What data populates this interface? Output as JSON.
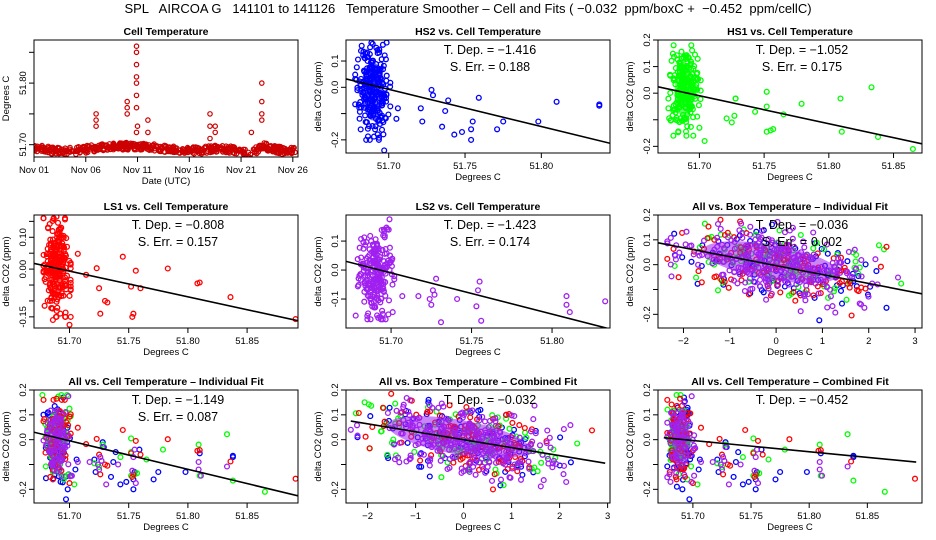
{
  "title": "SPL   AIRCOA G   141101 to 141126   Temperature Smoother – Cell and Fits ( −0.032  ppm/boxC +  −0.452  ppm/cellC)",
  "colors": {
    "HS2": "#0000ff",
    "HS1": "#00ff00",
    "LS1": "#ff0000",
    "LS2": "#a020f0",
    "cell_temp_fill": "#cc0000",
    "fit_line": "#000000"
  },
  "chart_data": [
    {
      "id": "cell-temperature",
      "type": "scatter",
      "title": "Cell Temperature",
      "xlabel": "Date (UTC)",
      "ylabel": "Degrees C",
      "xlim": [
        0,
        25.5
      ],
      "ylim": [
        51.68,
        51.87
      ],
      "xticks": [
        0,
        5,
        10,
        15,
        20,
        25
      ],
      "xticklabels": [
        "Nov 01",
        "Nov 06",
        "Nov 11",
        "Nov 16",
        "Nov 21",
        "Nov 26"
      ],
      "yticks": [
        51.7,
        51.75,
        51.8,
        51.85
      ],
      "yticklabels": [
        "51.70",
        "",
        "51.80",
        ""
      ],
      "series": [
        {
          "name": "cell",
          "color_key": "cell_temp_fill",
          "baseline": [
            [
              0,
              51.695
            ],
            [
              2,
              51.69
            ],
            [
              4,
              51.69
            ],
            [
              6,
              51.695
            ],
            [
              8,
              51.697
            ],
            [
              10,
              51.698
            ],
            [
              12,
              51.695
            ],
            [
              14,
              51.692
            ],
            [
              16,
              51.69
            ],
            [
              18,
              51.695
            ],
            [
              20,
              51.688
            ],
            [
              21,
              51.685
            ],
            [
              22,
              51.698
            ],
            [
              24,
              51.69
            ],
            [
              25,
              51.69
            ]
          ],
          "spikes": [
            [
              6,
              51.73
            ],
            [
              6,
              51.74
            ],
            [
              6,
              51.75
            ],
            [
              9,
              51.75
            ],
            [
              9,
              51.76
            ],
            [
              9,
              51.77
            ],
            [
              9.9,
              51.72
            ],
            [
              9.9,
              51.76
            ],
            [
              9.9,
              51.78
            ],
            [
              9.9,
              51.8
            ],
            [
              9.9,
              51.81
            ],
            [
              9.9,
              51.83
            ],
            [
              9.9,
              51.85
            ],
            [
              9.9,
              51.86
            ],
            [
              10,
              51.73
            ],
            [
              11,
              51.72
            ],
            [
              11,
              51.74
            ],
            [
              17,
              51.71
            ],
            [
              17,
              51.73
            ],
            [
              17,
              51.75
            ],
            [
              17.5,
              51.72
            ],
            [
              17.5,
              51.73
            ],
            [
              21,
              51.72
            ],
            [
              22,
              51.74
            ],
            [
              22,
              51.75
            ],
            [
              22,
              51.77
            ],
            [
              22,
              51.8
            ]
          ]
        }
      ]
    },
    {
      "id": "hs2-vs-cell",
      "type": "scatter",
      "title": "HS2 vs. Cell Temperature",
      "xlabel": "Degrees C",
      "ylabel": "delta CO2 (ppm)",
      "xlim": [
        51.672,
        51.845
      ],
      "ylim": [
        -0.25,
        0.18
      ],
      "xticks": [
        51.7,
        51.75,
        51.8
      ],
      "xticklabels": [
        "51.70",
        "51.75",
        "51.80"
      ],
      "yticks": [
        -0.2,
        -0.1,
        0.0,
        0.1
      ],
      "yticklabels": [
        "-0.2",
        "",
        "0.0",
        "0.1"
      ],
      "annotations": [
        "T. Dep. =  −1.416",
        "S. Err. =  0.188"
      ],
      "fit": {
        "slope": -1.416,
        "intercept_at": [
          51.672,
          0.032
        ]
      },
      "series": [
        {
          "name": "HS2",
          "color_key": "HS2",
          "cluster": {
            "x": [
              51.678,
              51.701
            ],
            "y": [
              -0.2,
              0.17
            ]
          },
          "points": [
            [
              51.706,
              -0.08
            ],
            [
              51.705,
              -0.12
            ],
            [
              51.721,
              -0.08
            ],
            [
              51.722,
              -0.13
            ],
            [
              51.728,
              -0.01
            ],
            [
              51.729,
              -0.03
            ],
            [
              51.735,
              -0.15
            ],
            [
              51.737,
              -0.09
            ],
            [
              51.739,
              -0.05
            ],
            [
              51.743,
              -0.18
            ],
            [
              51.748,
              -0.17
            ],
            [
              51.754,
              -0.16
            ],
            [
              51.754,
              -0.2
            ],
            [
              51.755,
              -0.13
            ],
            [
              51.759,
              -0.04
            ],
            [
              51.771,
              -0.16
            ],
            [
              51.775,
              -0.13
            ],
            [
              51.798,
              -0.13
            ],
            [
              51.81,
              -0.055
            ],
            [
              51.838,
              -0.065
            ],
            [
              51.838,
              -0.07
            ],
            [
              51.697,
              -0.24
            ]
          ]
        }
      ]
    },
    {
      "id": "hs1-vs-cell",
      "type": "scatter",
      "title": "HS1 vs. Cell Temperature",
      "xlabel": "Degrees C",
      "ylabel": "delta CO2 (ppm)",
      "xlim": [
        51.668,
        51.872
      ],
      "ylim": [
        -0.225,
        0.2
      ],
      "xticks": [
        51.7,
        51.75,
        51.8,
        51.85
      ],
      "xticklabels": [
        "51.70",
        "51.75",
        "51.80",
        "51.85"
      ],
      "yticks": [
        -0.2,
        -0.1,
        0.0,
        0.1,
        0.2
      ],
      "yticklabels": [
        "-0.2",
        "",
        "0.0",
        "0.1",
        "0.2"
      ],
      "annotations": [
        "T. Dep. =  −1.052",
        "S. Err. =  0.175"
      ],
      "fit": {
        "slope": -1.052,
        "intercept_at": [
          51.668,
          0.024
        ]
      },
      "series": [
        {
          "name": "HS1",
          "color_key": "HS1",
          "cluster": {
            "x": [
              51.676,
              51.701
            ],
            "y": [
              -0.16,
              0.18
            ]
          },
          "points": [
            [
              51.704,
              -0.18
            ],
            [
              51.721,
              -0.095
            ],
            [
              51.725,
              -0.11
            ],
            [
              51.727,
              -0.085
            ],
            [
              51.728,
              -0.02
            ],
            [
              51.728,
              -0.02
            ],
            [
              51.743,
              -0.07
            ],
            [
              51.752,
              0.005
            ],
            [
              51.752,
              -0.05
            ],
            [
              51.752,
              -0.145
            ],
            [
              51.755,
              -0.14
            ],
            [
              51.757,
              -0.135
            ],
            [
              51.765,
              -0.08
            ],
            [
              51.779,
              -0.04
            ],
            [
              51.809,
              -0.02
            ],
            [
              51.81,
              -0.145
            ],
            [
              51.833,
              0.022
            ],
            [
              51.838,
              -0.165
            ],
            [
              51.865,
              -0.21
            ]
          ]
        }
      ]
    },
    {
      "id": "ls1-vs-cell",
      "type": "scatter",
      "title": "LS1 vs. Cell Temperature",
      "xlabel": "Degrees C",
      "ylabel": "delta CO2 (ppm)",
      "xlim": [
        51.67,
        51.893
      ],
      "ylim": [
        -0.185,
        0.17
      ],
      "xticks": [
        51.7,
        51.75,
        51.8,
        51.85
      ],
      "xticklabels": [
        "51.70",
        "51.75",
        "51.80",
        "51.85"
      ],
      "yticks": [
        -0.15,
        -0.1,
        -0.05,
        0.0,
        0.05,
        0.1,
        0.15
      ],
      "yticklabels": [
        "-0.15",
        "",
        "",
        "0.00",
        "",
        "0.10",
        ""
      ],
      "annotations": [
        "T. Dep. =  −0.808",
        "S. Err. =  0.157"
      ],
      "fit": {
        "slope": -0.808,
        "intercept_at": [
          51.67,
          0.018
        ]
      },
      "series": [
        {
          "name": "LS1",
          "color_key": "LS1",
          "cluster": {
            "x": [
              51.678,
              51.701
            ],
            "y": [
              -0.15,
              0.16
            ]
          },
          "points": [
            [
              51.707,
              0.048
            ],
            [
              51.714,
              -0.018
            ],
            [
              51.723,
              0.003
            ],
            [
              51.725,
              -0.06
            ],
            [
              51.726,
              -0.14
            ],
            [
              51.73,
              -0.1
            ],
            [
              51.732,
              -0.105
            ],
            [
              51.745,
              0.039
            ],
            [
              51.752,
              -0.055
            ],
            [
              51.753,
              -0.15
            ],
            [
              51.754,
              -0.14
            ],
            [
              51.756,
              -0.005
            ],
            [
              51.76,
              -0.06
            ],
            [
              51.783,
              0.002
            ],
            [
              51.808,
              -0.045
            ],
            [
              51.81,
              -0.042
            ],
            [
              51.836,
              -0.088
            ],
            [
              51.891,
              -0.157
            ],
            [
              51.7,
              -0.175
            ],
            [
              51.686,
              -0.16
            ],
            [
              51.678,
              0.16
            ],
            [
              51.689,
              0.165
            ]
          ]
        }
      ]
    },
    {
      "id": "ls2-vs-cell",
      "type": "scatter",
      "title": "LS2 vs. Cell Temperature",
      "xlabel": "Degrees C",
      "ylabel": "delta CO2 (ppm)",
      "xlim": [
        51.672,
        51.836
      ],
      "ylim": [
        -0.2,
        0.19
      ],
      "xticks": [
        51.7,
        51.75,
        51.8
      ],
      "xticklabels": [
        "51.70",
        "51.75",
        "51.80"
      ],
      "yticks": [
        -0.1,
        0.0,
        0.1
      ],
      "yticklabels": [
        "-0.1",
        "0.0",
        "0.1"
      ],
      "annotations": [
        "T. Dep. =  −1.423",
        "S. Err. =  0.174"
      ],
      "fit": {
        "slope": -1.423,
        "intercept_at": [
          51.672,
          0.03
        ]
      },
      "series": [
        {
          "name": "LS2",
          "color_key": "LS2",
          "cluster": {
            "x": [
              51.678,
              51.702
            ],
            "y": [
              -0.17,
              0.15
            ]
          },
          "points": [
            [
              51.699,
              0.175
            ],
            [
              51.701,
              -0.145
            ],
            [
              51.707,
              -0.09
            ],
            [
              51.717,
              -0.09
            ],
            [
              51.724,
              -0.1
            ],
            [
              51.725,
              -0.12
            ],
            [
              51.726,
              -0.07
            ],
            [
              51.727,
              -0.085
            ],
            [
              51.728,
              -0.03
            ],
            [
              51.731,
              -0.18
            ],
            [
              51.741,
              -0.1
            ],
            [
              51.753,
              -0.125
            ],
            [
              51.754,
              -0.07
            ],
            [
              51.755,
              -0.04
            ],
            [
              51.756,
              -0.175
            ],
            [
              51.809,
              -0.09
            ],
            [
              51.809,
              -0.12
            ],
            [
              51.811,
              -0.145
            ],
            [
              51.833,
              -0.108
            ]
          ]
        }
      ]
    },
    {
      "id": "all-vs-box-individual",
      "type": "scatter",
      "title": "All vs. Box Temperature – Individual Fit",
      "xlabel": "Degrees C",
      "ylabel": "delta CO2 (ppm)",
      "xlim": [
        -2.55,
        3.15
      ],
      "ylim": [
        -0.255,
        0.2
      ],
      "xticks": [
        -2,
        -1,
        0,
        1,
        2,
        3
      ],
      "xticklabels": [
        "−2",
        "−1",
        "0",
        "1",
        "2",
        "3"
      ],
      "yticks": [
        -0.2,
        -0.1,
        0.0,
        0.1,
        0.2
      ],
      "yticklabels": [
        "-0.2",
        "",
        "0.0",
        "0.1",
        "0.2"
      ],
      "annotations": [
        "T. Dep. =  −0.036",
        "S. Err. =  0.002"
      ],
      "fit": {
        "slope": -0.036,
        "intercept_at": [
          -2.55,
          0.088
        ]
      },
      "series": [
        {
          "name": "HS2",
          "color_key": "HS2",
          "spread": true
        },
        {
          "name": "HS1",
          "color_key": "HS1",
          "spread": true
        },
        {
          "name": "LS1",
          "color_key": "LS1",
          "spread": true
        },
        {
          "name": "LS2",
          "color_key": "LS2",
          "spread": true,
          "dense": true
        }
      ]
    },
    {
      "id": "all-vs-cell-individual",
      "type": "scatter",
      "title": "All vs. Cell Temperature – Individual Fit",
      "xlabel": "Degrees C",
      "ylabel": "delta CO2 (ppm)",
      "xlim": [
        51.67,
        51.893
      ],
      "ylim": [
        -0.255,
        0.2
      ],
      "xticks": [
        51.7,
        51.75,
        51.8,
        51.85
      ],
      "xticklabels": [
        "51.70",
        "51.75",
        "51.80",
        "51.85"
      ],
      "yticks": [
        -0.2,
        -0.1,
        0.0,
        0.1,
        0.2
      ],
      "yticklabels": [
        "-0.2",
        "",
        "0.0",
        "0.1",
        "0.2"
      ],
      "annotations": [
        "T. Dep. =  −1.149",
        "S. Err. =  0.087"
      ],
      "fit": {
        "slope": -1.149,
        "intercept_at": [
          51.67,
          0.03
        ]
      },
      "series": [
        {
          "name": "HS2",
          "color_key": "HS2",
          "from": "hs2-vs-cell"
        },
        {
          "name": "HS1",
          "color_key": "HS1",
          "from": "hs1-vs-cell"
        },
        {
          "name": "LS1",
          "color_key": "LS1",
          "from": "ls1-vs-cell"
        },
        {
          "name": "LS2",
          "color_key": "LS2",
          "from": "ls2-vs-cell",
          "dense": true
        }
      ]
    },
    {
      "id": "all-vs-box-combined",
      "type": "scatter",
      "title": "All vs. Box Temperature – Combined Fit",
      "xlabel": "Degrees C",
      "ylabel": "delta CO2 (ppm)",
      "xlim": [
        -2.45,
        3.05
      ],
      "ylim": [
        -0.255,
        0.2
      ],
      "xticks": [
        -2,
        -1,
        0,
        1,
        2,
        3
      ],
      "xticklabels": [
        "−2",
        "−1",
        "0",
        "1",
        "2",
        "3"
      ],
      "yticks": [
        -0.2,
        -0.1,
        0.0,
        0.1,
        0.2
      ],
      "yticklabels": [
        "-0.2",
        "",
        "0.0",
        "0.1",
        "0.2"
      ],
      "annotations": [
        "T. Dep. =  −0.032"
      ],
      "fit": {
        "slope": -0.032,
        "intercept_at": [
          -2.35,
          0.075
        ],
        "x_end": 2.95
      },
      "series": [
        {
          "name": "HS2",
          "color_key": "HS2",
          "spread": true
        },
        {
          "name": "HS1",
          "color_key": "HS1",
          "spread": true
        },
        {
          "name": "LS1",
          "color_key": "LS1",
          "spread": true
        },
        {
          "name": "LS2",
          "color_key": "LS2",
          "spread": true,
          "dense": true
        }
      ]
    },
    {
      "id": "all-vs-cell-combined",
      "type": "scatter",
      "title": "All vs. Cell Temperature – Combined Fit",
      "xlabel": "Degrees C",
      "ylabel": "delta CO2 (ppm)",
      "xlim": [
        51.67,
        51.897
      ],
      "ylim": [
        -0.255,
        0.2
      ],
      "xticks": [
        51.7,
        51.75,
        51.8,
        51.85
      ],
      "xticklabels": [
        "51.70",
        "51.75",
        "51.80",
        "51.85"
      ],
      "yticks": [
        -0.2,
        -0.1,
        0.0,
        0.1,
        0.2
      ],
      "yticklabels": [
        "-0.2",
        "",
        "0.0",
        "0.1",
        "0.2"
      ],
      "annotations": [
        "T. Dep. =  −0.452"
      ],
      "fit": {
        "slope": -0.452,
        "intercept_at": [
          51.675,
          0.008
        ],
        "x_end": 51.892
      },
      "series": [
        {
          "name": "HS2",
          "color_key": "HS2",
          "from": "hs2-vs-cell"
        },
        {
          "name": "HS1",
          "color_key": "HS1",
          "from": "hs1-vs-cell"
        },
        {
          "name": "LS1",
          "color_key": "LS1",
          "from": "ls1-vs-cell"
        },
        {
          "name": "LS2",
          "color_key": "LS2",
          "from": "ls2-vs-cell",
          "dense": true
        }
      ]
    }
  ]
}
